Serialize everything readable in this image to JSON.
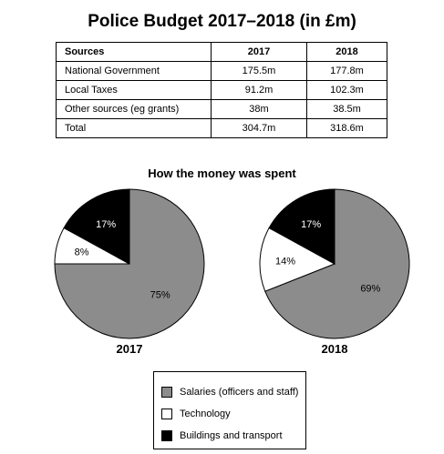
{
  "title": "Police Budget 2017–2018 (in £m)",
  "table": {
    "headers": [
      "Sources",
      "2017",
      "2018"
    ],
    "rows": [
      [
        "National Government",
        "175.5m",
        "177.8m"
      ],
      [
        "Local Taxes",
        "91.2m",
        "102.3m"
      ],
      [
        "Other sources (eg grants)",
        "38m",
        "38.5m"
      ],
      [
        "Total",
        "304.7m",
        "318.6m"
      ]
    ]
  },
  "pie_title": "How the money was spent",
  "legend": [
    {
      "label": "Salaries (officers and staff)",
      "color": "#8c8c8c"
    },
    {
      "label": "Technology",
      "color": "#ffffff"
    },
    {
      "label": "Buildings and transport",
      "color": "#000000"
    }
  ],
  "chart_data": [
    {
      "type": "pie",
      "title": "2017",
      "categories": [
        "Salaries (officers and staff)",
        "Technology",
        "Buildings and transport"
      ],
      "values": [
        75,
        8,
        17
      ],
      "labels": [
        "75%",
        "8%",
        "17%"
      ],
      "colors": [
        "#8c8c8c",
        "#ffffff",
        "#000000"
      ]
    },
    {
      "type": "pie",
      "title": "2018",
      "categories": [
        "Salaries (officers and staff)",
        "Technology",
        "Buildings and transport"
      ],
      "values": [
        69,
        14,
        17
      ],
      "labels": [
        "69%",
        "14%",
        "17%"
      ],
      "colors": [
        "#8c8c8c",
        "#ffffff",
        "#000000"
      ]
    }
  ]
}
